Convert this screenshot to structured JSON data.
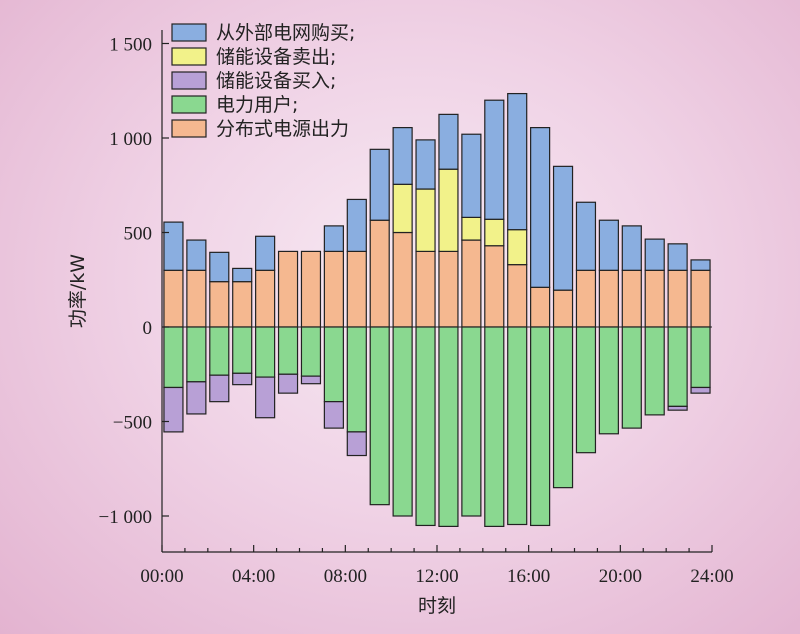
{
  "chart_data": {
    "type": "bar",
    "stacked": true,
    "xlabel": "时刻",
    "ylabel": "功率/kW",
    "ylim": [
      -1200,
      1500
    ],
    "yticks": [
      -1000,
      -500,
      0,
      500,
      1000,
      1500
    ],
    "ytick_labels": [
      "−1 000",
      "−500",
      "0",
      "500",
      "1 000",
      "1 500"
    ],
    "xlim": [
      0,
      24
    ],
    "xticks": [
      0,
      4,
      8,
      12,
      16,
      20,
      24
    ],
    "xtick_labels": [
      "00:00",
      "04:00",
      "08:00",
      "12:00",
      "16:00",
      "20:00",
      "24:00"
    ],
    "grid": false,
    "legend_position": "top-left",
    "hours": [
      1,
      2,
      3,
      4,
      5,
      6,
      7,
      8,
      9,
      10,
      11,
      12,
      13,
      14,
      15,
      16,
      17,
      18,
      19,
      20,
      21,
      22,
      23,
      24
    ],
    "series": [
      {
        "name": "从外部电网购买;",
        "color": "#8aaee0",
        "values": [
          255,
          160,
          155,
          70,
          180,
          0,
          0,
          135,
          275,
          375,
          300,
          260,
          290,
          440,
          630,
          720,
          845,
          655,
          360,
          265,
          235,
          165,
          140,
          55
        ]
      },
      {
        "name": "储能设备卖出;",
        "color": "#f2f28a",
        "values": [
          0,
          0,
          0,
          0,
          0,
          0,
          0,
          0,
          0,
          0,
          255,
          330,
          435,
          120,
          140,
          185,
          0,
          0,
          0,
          0,
          0,
          0,
          0,
          0
        ]
      },
      {
        "name": "储能设备买入;",
        "color": "#b8a0d6",
        "values": [
          -235,
          -170,
          -140,
          -60,
          -215,
          -100,
          -40,
          -140,
          -125,
          0,
          0,
          0,
          0,
          0,
          0,
          0,
          0,
          0,
          0,
          0,
          0,
          0,
          -20,
          -30
        ]
      },
      {
        "name": "电力用户;",
        "color": "#8ad890",
        "values": [
          -320,
          -290,
          -255,
          -245,
          -265,
          -250,
          -260,
          -395,
          -555,
          -940,
          -1000,
          -1050,
          -1055,
          -1000,
          -1055,
          -1045,
          -1050,
          -850,
          -665,
          -565,
          -535,
          -465,
          -420,
          -320
        ]
      },
      {
        "name": "分布式电源出力",
        "color": "#f5b890",
        "values": [
          300,
          300,
          240,
          240,
          300,
          400,
          400,
          400,
          400,
          565,
          500,
          400,
          400,
          460,
          430,
          330,
          210,
          195,
          300,
          300,
          300,
          300,
          300,
          300
        ]
      }
    ]
  }
}
